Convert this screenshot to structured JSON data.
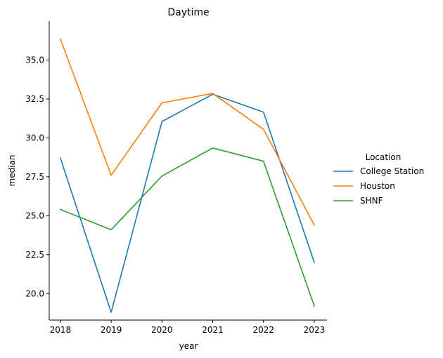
{
  "chart_data": {
    "type": "line",
    "title": "Daytime",
    "xlabel": "year",
    "ylabel": "median",
    "x": [
      2018,
      2019,
      2020,
      2021,
      2022,
      2023
    ],
    "xticks": [
      "2018",
      "2019",
      "2020",
      "2021",
      "2022",
      "2023"
    ],
    "yticks": [
      "20.0",
      "22.5",
      "25.0",
      "27.5",
      "30.0",
      "32.5",
      "35.0"
    ],
    "ylim": [
      18.3,
      37.5
    ],
    "xlim": [
      2017.78,
      2023.25
    ],
    "grid": false,
    "legend": {
      "title": "Location",
      "placement": "right"
    },
    "series": [
      {
        "name": "College Station",
        "color": "#1f77b4",
        "values": [
          28.7,
          18.8,
          31.05,
          32.8,
          31.65,
          22.0
        ]
      },
      {
        "name": "Houston",
        "color": "#ff7f0e",
        "values": [
          36.35,
          27.6,
          32.25,
          32.85,
          30.55,
          24.4
        ]
      },
      {
        "name": "SHNF",
        "color": "#2ca02c",
        "values": [
          25.4,
          24.1,
          27.55,
          29.35,
          28.5,
          19.2
        ]
      }
    ]
  }
}
